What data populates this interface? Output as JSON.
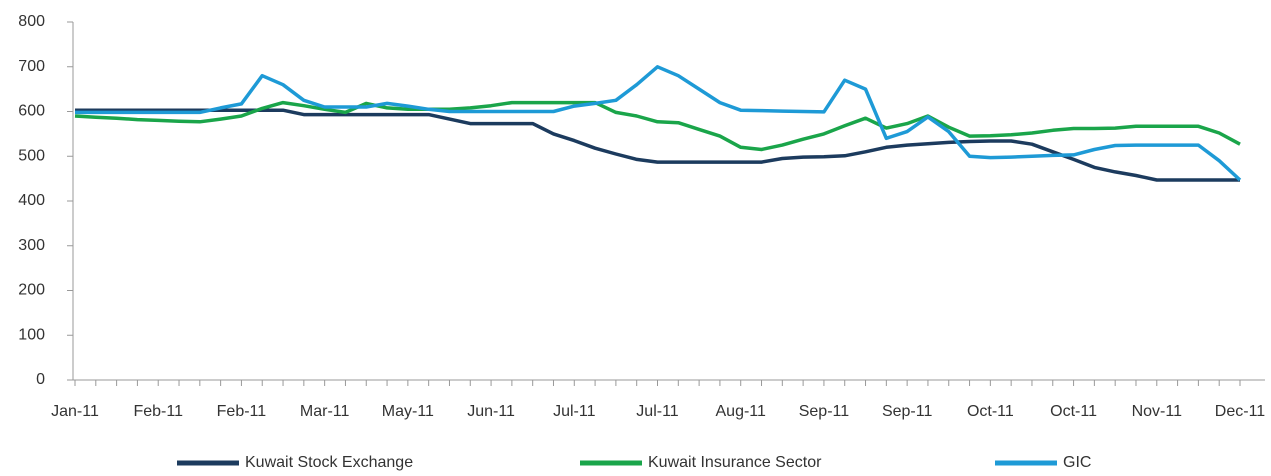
{
  "chart_data": {
    "type": "line",
    "categories": [
      "Jan-11",
      null,
      null,
      null,
      "Feb-11",
      null,
      null,
      null,
      "Feb-11",
      null,
      null,
      null,
      "Mar-11",
      null,
      null,
      null,
      "May-11",
      null,
      null,
      null,
      "Jun-11",
      null,
      null,
      null,
      "Jul-11",
      null,
      null,
      null,
      "Jul-11",
      null,
      null,
      null,
      "Aug-11",
      null,
      null,
      null,
      "Sep-11",
      null,
      null,
      null,
      "Sep-11",
      null,
      null,
      null,
      "Oct-11",
      null,
      null,
      null,
      "Oct-11",
      null,
      null,
      null,
      "Nov-11",
      null,
      null,
      null,
      "Dec-11"
    ],
    "series": [
      {
        "name": "Kuwait Stock Exchange",
        "color": "#1c3b5e",
        "values": [
          603,
          603,
          603,
          603,
          603,
          603,
          603,
          603,
          603,
          603,
          603,
          593,
          593,
          593,
          593,
          593,
          593,
          593,
          583,
          573,
          573,
          573,
          573,
          550,
          535,
          518,
          505,
          493,
          487,
          487,
          487,
          487,
          487,
          487,
          495,
          498,
          499,
          501,
          510,
          520,
          525,
          528,
          531,
          533,
          534,
          534,
          527,
          510,
          493,
          475,
          465,
          457,
          447,
          447,
          447,
          447,
          447
        ]
      },
      {
        "name": "Kuwait Insurance Sector",
        "color": "#1aa54a",
        "values": [
          590,
          587,
          585,
          582,
          580,
          578,
          577,
          583,
          590,
          607,
          620,
          613,
          605,
          598,
          618,
          608,
          605,
          605,
          605,
          608,
          613,
          620,
          620,
          620,
          620,
          620,
          598,
          590,
          577,
          575,
          560,
          545,
          520,
          515,
          525,
          538,
          550,
          568,
          585,
          563,
          573,
          590,
          565,
          545,
          546,
          548,
          552,
          558,
          562,
          562,
          563,
          567,
          567,
          567,
          567,
          552,
          527
        ]
      },
      {
        "name": "GIC",
        "color": "#1e9ad6",
        "values": [
          598,
          598,
          598,
          598,
          598,
          598,
          598,
          608,
          617,
          680,
          660,
          625,
          610,
          610,
          610,
          618,
          612,
          605,
          600,
          600,
          600,
          600,
          600,
          600,
          612,
          618,
          625,
          660,
          700,
          680,
          650,
          620,
          603,
          602,
          601,
          600,
          599,
          670,
          650,
          540,
          555,
          588,
          555,
          500,
          497,
          498,
          500,
          502,
          503,
          515,
          524,
          525,
          525,
          525,
          525,
          490,
          447
        ]
      }
    ],
    "ylim": [
      0,
      800
    ],
    "yticks": [
      0,
      100,
      200,
      300,
      400,
      500,
      600,
      700,
      800
    ],
    "grid": false
  }
}
